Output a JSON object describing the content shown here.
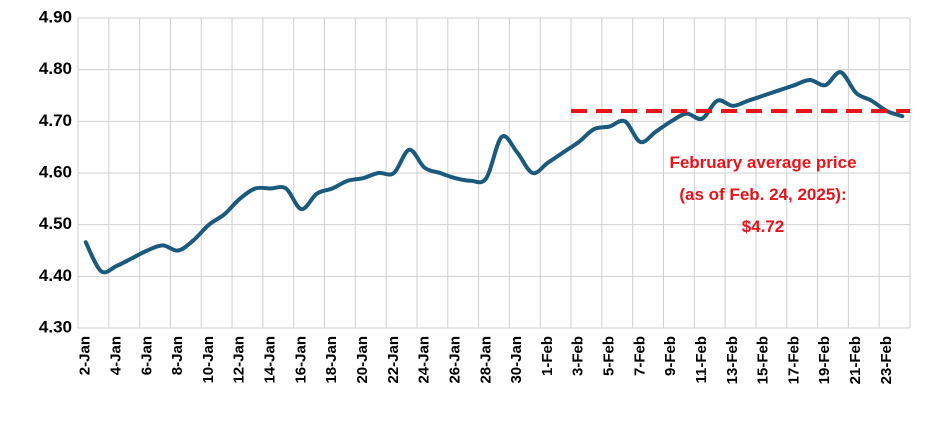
{
  "chart_data": {
    "type": "line",
    "categories": [
      "2-Jan",
      null,
      "4-Jan",
      null,
      "6-Jan",
      null,
      "8-Jan",
      null,
      "10-Jan",
      null,
      "12-Jan",
      null,
      "14-Jan",
      null,
      "16-Jan",
      null,
      "18-Jan",
      null,
      "20-Jan",
      null,
      "22-Jan",
      null,
      "24-Jan",
      null,
      "26-Jan",
      null,
      "28-Jan",
      null,
      "30-Jan",
      null,
      "1-Feb",
      null,
      "3-Feb",
      null,
      "5-Feb",
      null,
      "7-Feb",
      null,
      "9-Feb",
      null,
      "11-Feb",
      null,
      "13-Feb",
      null,
      "15-Feb",
      null,
      "17-Feb",
      null,
      "19-Feb",
      null,
      "21-Feb",
      null,
      "23-Feb",
      null
    ],
    "values": [
      4.466,
      4.41,
      4.42,
      4.435,
      4.45,
      4.46,
      4.45,
      4.47,
      4.5,
      4.52,
      4.55,
      4.57,
      4.57,
      4.57,
      4.53,
      4.56,
      4.57,
      4.585,
      4.59,
      4.6,
      4.6,
      4.645,
      4.61,
      4.6,
      4.59,
      4.585,
      4.59,
      4.67,
      4.64,
      4.6,
      4.62,
      4.64,
      4.66,
      4.685,
      4.69,
      4.7,
      4.66,
      4.68,
      4.7,
      4.715,
      4.705,
      4.74,
      4.73,
      4.74,
      4.75,
      4.76,
      4.77,
      4.78,
      4.77,
      4.795,
      4.755,
      4.74,
      4.72,
      4.71
    ],
    "color": "#1b5a7c",
    "ylim": [
      4.3,
      4.9
    ],
    "yticks": [
      {
        "value": 4.3,
        "label": "4.30"
      },
      {
        "value": 4.4,
        "label": "4.40"
      },
      {
        "value": 4.5,
        "label": "4.50"
      },
      {
        "value": 4.6,
        "label": "4.60"
      },
      {
        "value": 4.7,
        "label": "4.70"
      },
      {
        "value": 4.8,
        "label": "4.80"
      },
      {
        "value": 4.9,
        "label": "4.90"
      }
    ],
    "grid": true,
    "reference_line": {
      "value": 4.72,
      "label": "$4.72",
      "start": "3-Feb",
      "color": "#e8141c",
      "text": [
        "February average price",
        "(as of Feb. 24, 2025):"
      ]
    }
  }
}
